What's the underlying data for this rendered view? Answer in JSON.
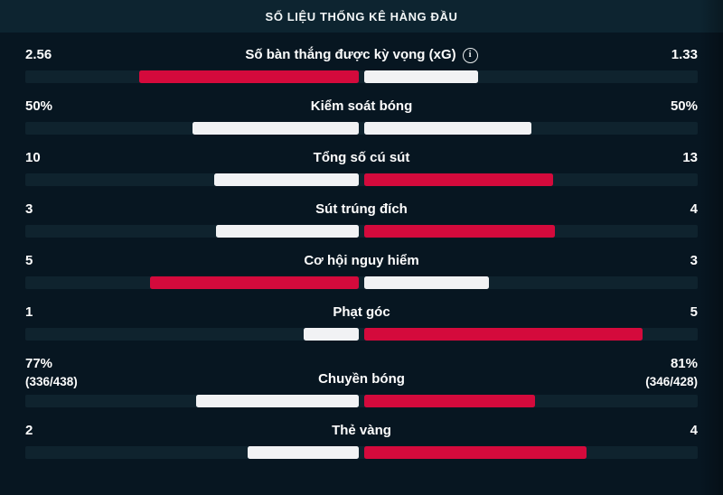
{
  "header": {
    "title": "SỐ LIỆU THỐNG KÊ HÀNG ĐẦU"
  },
  "icons": {
    "info_glyph": "i"
  },
  "colors": {
    "background": "#071621",
    "header_background": "#0d2430",
    "bar_track": "#0f232e",
    "highlight_bar": "#d40a3c",
    "neutral_bar": "#f1f2f4",
    "text": "#ffffff"
  },
  "stats": [
    {
      "label": "Số bàn thắng được kỳ vọng (xG)",
      "has_info_icon": true,
      "home_display": "2.56",
      "away_display": "1.33",
      "home_value": 2.56,
      "away_value": 1.33,
      "highlight": "home"
    },
    {
      "label": "Kiểm soát bóng",
      "has_info_icon": false,
      "home_display": "50%",
      "away_display": "50%",
      "home_value": 50,
      "away_value": 50,
      "highlight": "none"
    },
    {
      "label": "Tổng số cú sút",
      "has_info_icon": false,
      "home_display": "10",
      "away_display": "13",
      "home_value": 10,
      "away_value": 13,
      "highlight": "away"
    },
    {
      "label": "Sút trúng đích",
      "has_info_icon": false,
      "home_display": "3",
      "away_display": "4",
      "home_value": 3,
      "away_value": 4,
      "highlight": "away"
    },
    {
      "label": "Cơ hội nguy hiểm",
      "has_info_icon": false,
      "home_display": "5",
      "away_display": "3",
      "home_value": 5,
      "away_value": 3,
      "highlight": "home"
    },
    {
      "label": "Phạt góc",
      "has_info_icon": false,
      "home_display": "1",
      "away_display": "5",
      "home_value": 1,
      "away_value": 5,
      "highlight": "away"
    },
    {
      "label": "Chuyền bóng",
      "has_info_icon": false,
      "home_display": "77%",
      "home_sub": "(336/438)",
      "away_display": "81%",
      "away_sub": "(346/428)",
      "home_value": 77,
      "away_value": 81,
      "highlight": "away"
    },
    {
      "label": "Thẻ vàng",
      "has_info_icon": false,
      "home_display": "2",
      "away_display": "4",
      "home_value": 2,
      "away_value": 4,
      "highlight": "away"
    }
  ]
}
